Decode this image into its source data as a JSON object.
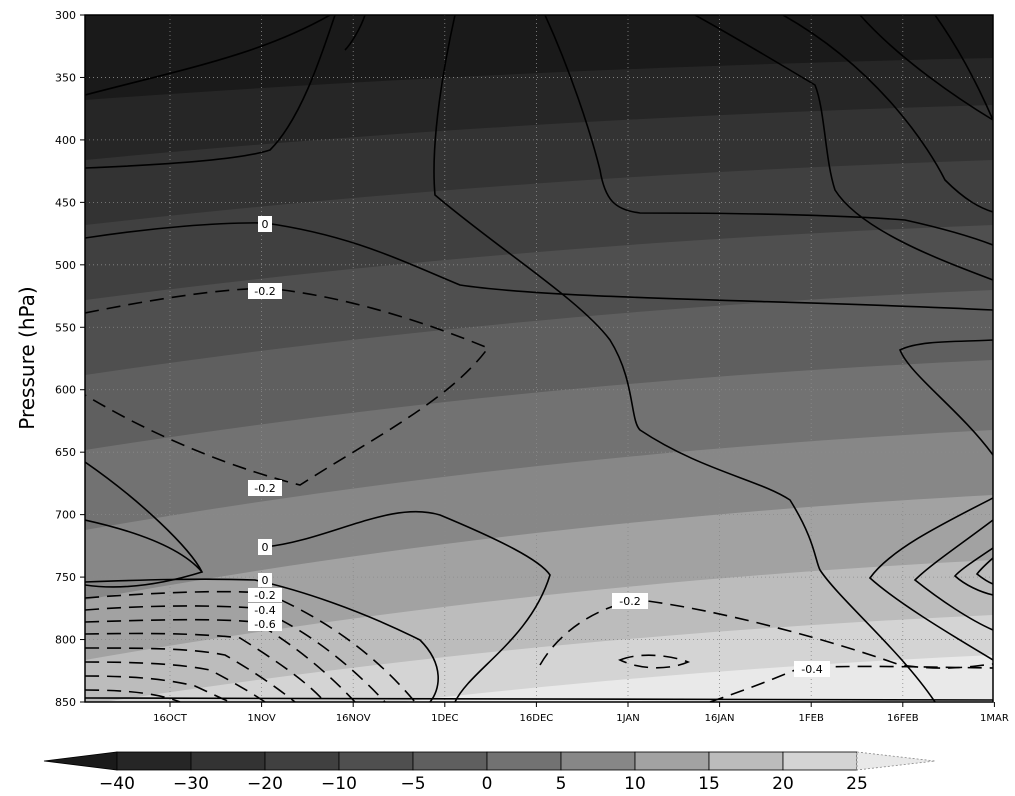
{
  "chart_data": {
    "type": "heatmap",
    "title": "",
    "xlabel": "",
    "ylabel": "Pressure (hPa)",
    "x_ticks": [
      "16OCT",
      "1NOV",
      "16NOV",
      "1DEC",
      "16DEC",
      "1JAN",
      "16JAN",
      "1FEB",
      "16FEB",
      "1MAR"
    ],
    "y_ticks": [
      300,
      350,
      400,
      450,
      500,
      550,
      600,
      650,
      700,
      750,
      800,
      850
    ],
    "ylim": [
      850,
      300
    ],
    "grid": true,
    "filled_levels": [
      -40,
      -30,
      -20,
      -10,
      -5,
      0,
      5,
      10,
      15,
      20,
      25
    ],
    "colorbar_labels": [
      "-40",
      "-30",
      "-20",
      "-10",
      "-5",
      "0",
      "5",
      "10",
      "15",
      "20",
      "25"
    ],
    "fill_colors": [
      "#1a1a1a",
      "#262626",
      "#333333",
      "#404040",
      "#4f4f4f",
      "#5f5f5f",
      "#727272",
      "#878787",
      "#a2a2a2",
      "#bcbcbc",
      "#d4d4d4",
      "#e9e9e9"
    ],
    "contour_labels": [
      "0",
      "-0.2",
      "-0.2",
      "0",
      "0",
      "-0.2",
      "-0.4",
      "-0.6",
      "-0.2",
      "-0.4"
    ],
    "dashed_negative_contours": true
  }
}
